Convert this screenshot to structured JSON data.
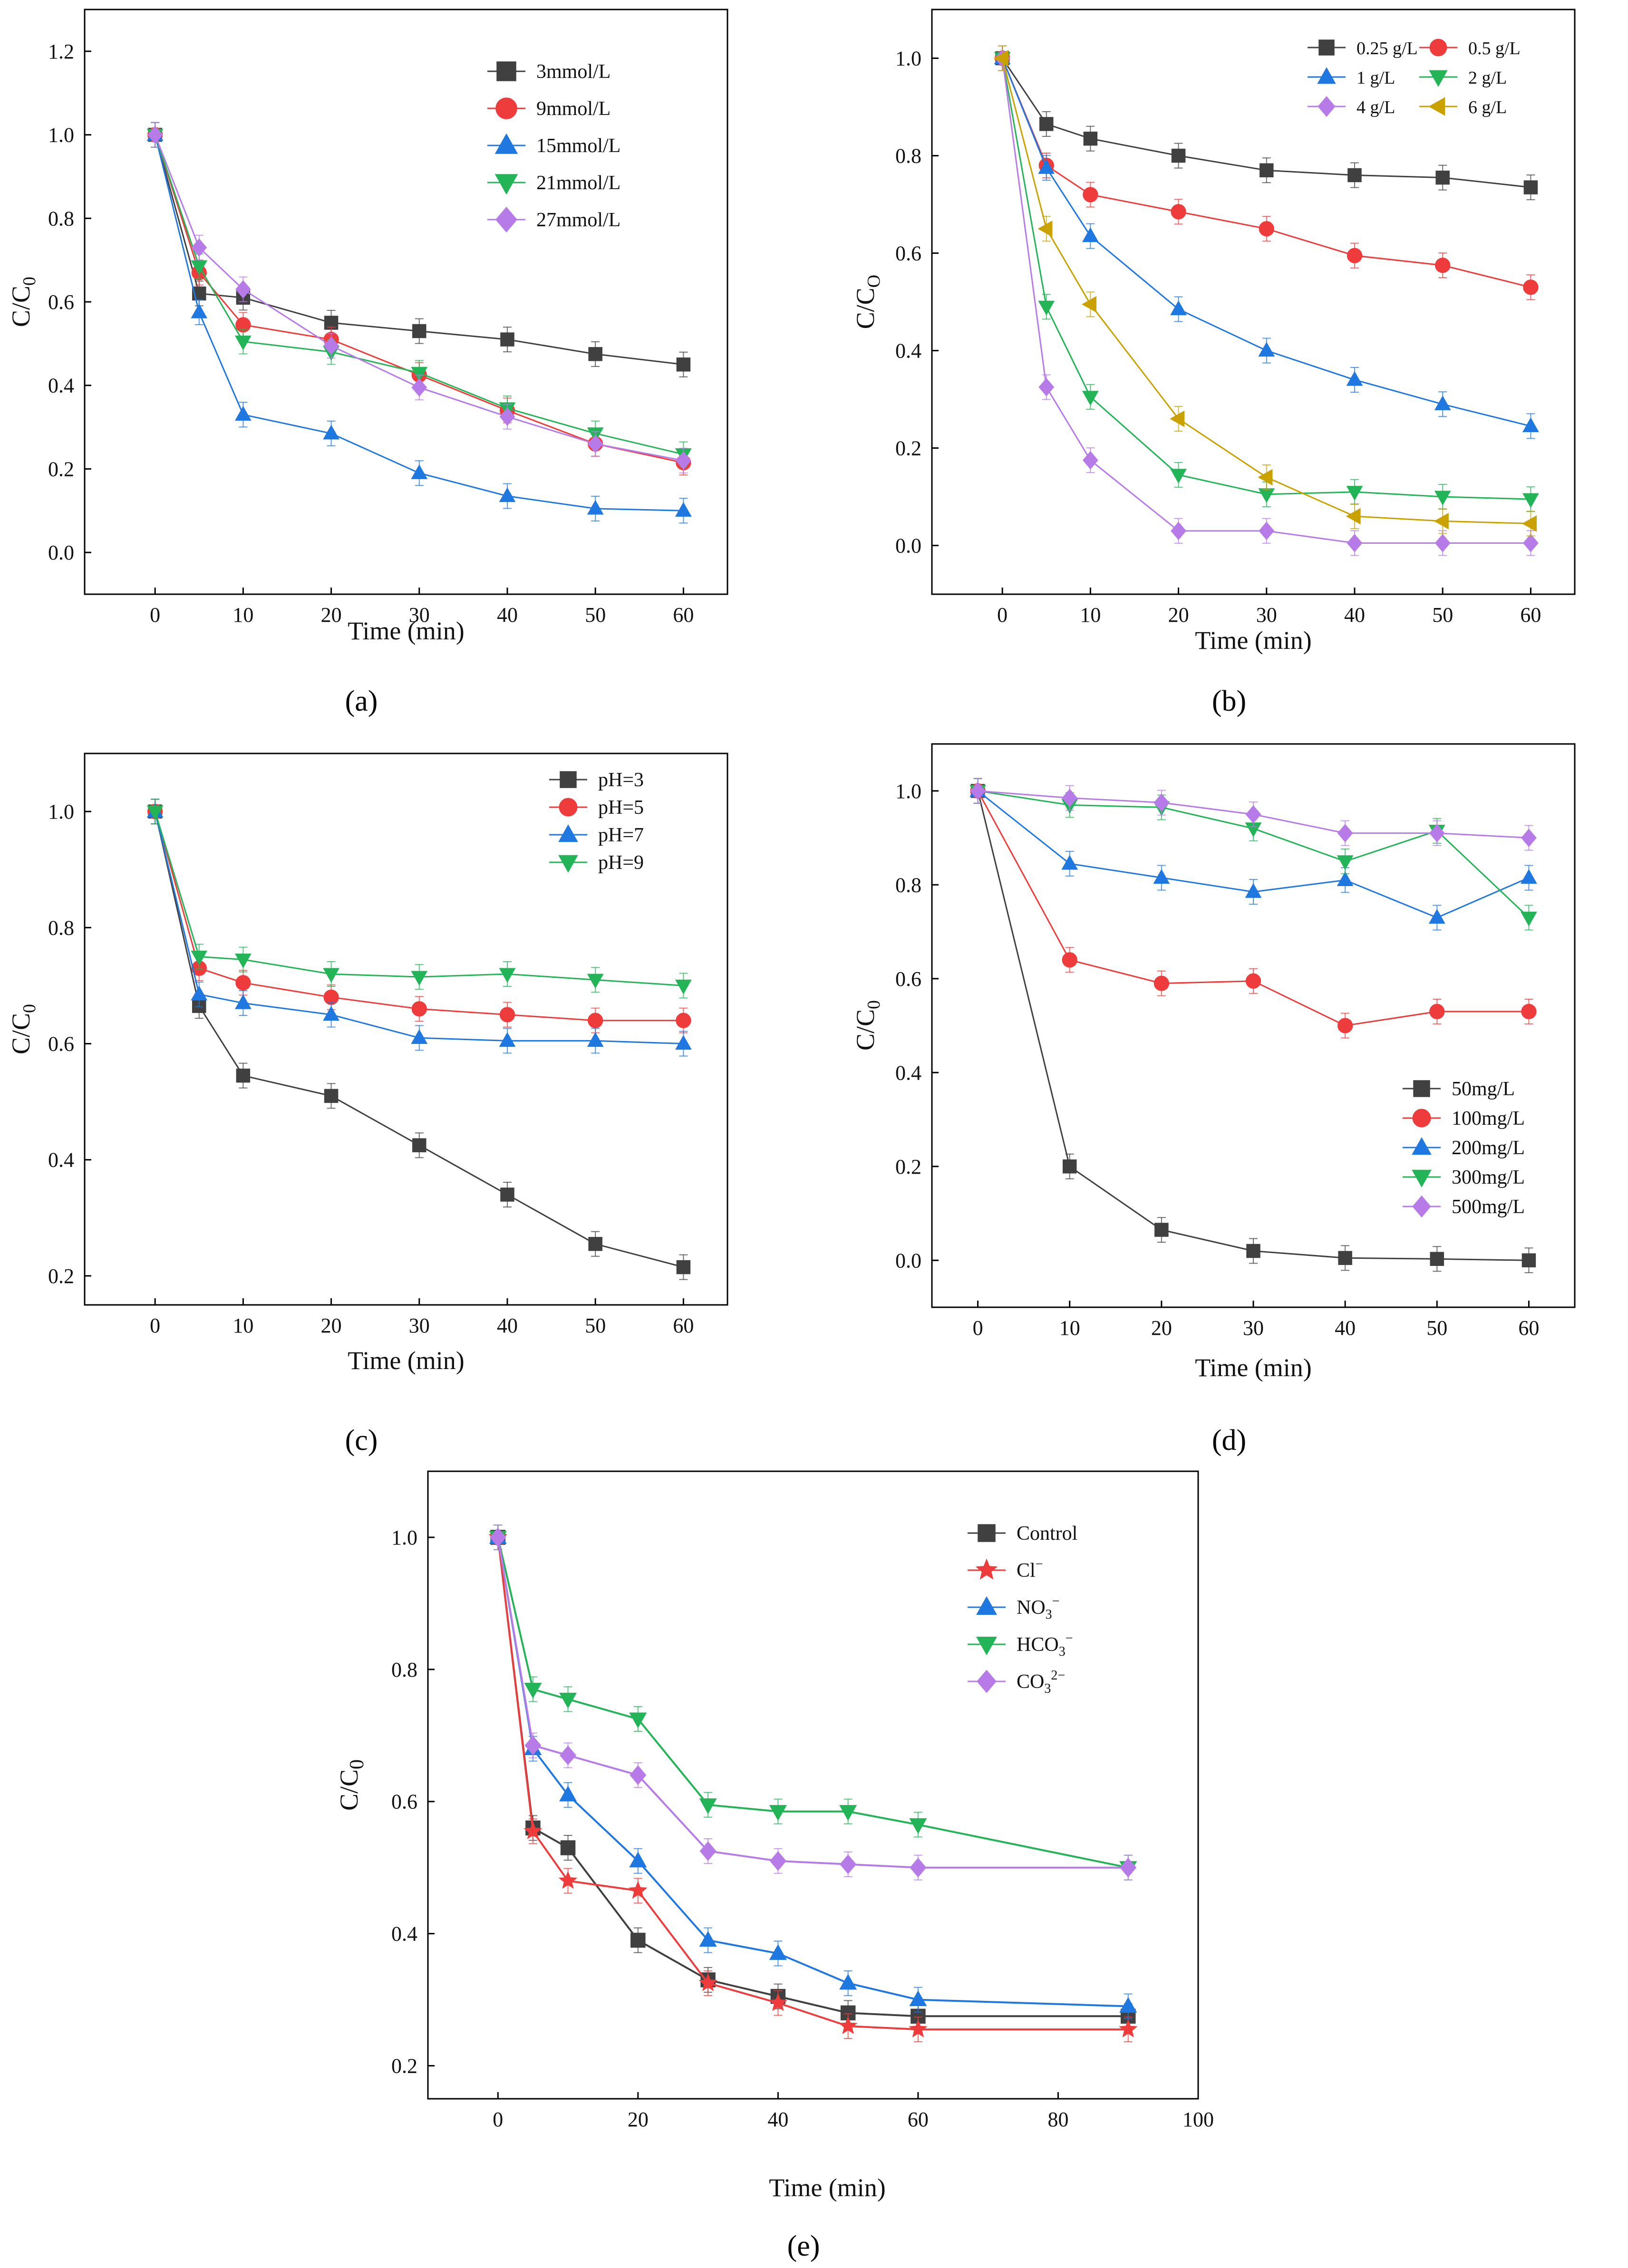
{
  "chart_data": [
    {
      "type": "line",
      "panel": "a",
      "caption": "(a)",
      "xlabel": "Time (min)",
      "ylabel": "C/C",
      "ylabel_sub": "0",
      "xlim": [
        -8,
        65
      ],
      "ylim": [
        -0.1,
        1.3
      ],
      "xticks": [
        0,
        10,
        20,
        30,
        40,
        50,
        60
      ],
      "yticks": [
        0.0,
        0.2,
        0.4,
        0.6,
        0.8,
        1.0,
        1.2
      ],
      "legend_position": "top-right",
      "x": [
        0,
        5,
        10,
        20,
        30,
        40,
        50,
        60
      ],
      "series": [
        {
          "name": "3mmol/L",
          "color": "#404040",
          "marker": "square",
          "values": [
            1.0,
            0.62,
            0.61,
            0.55,
            0.53,
            0.51,
            0.475,
            0.45
          ]
        },
        {
          "name": "9mmol/L",
          "color": "#ee3b3b",
          "marker": "circle",
          "values": [
            1.0,
            0.67,
            0.545,
            0.51,
            0.425,
            0.34,
            0.26,
            0.215
          ]
        },
        {
          "name": "15mmol/L",
          "color": "#1f77e0",
          "marker": "triangle-up",
          "values": [
            1.0,
            0.575,
            0.33,
            0.285,
            0.19,
            0.135,
            0.105,
            0.1
          ]
        },
        {
          "name": "21mmol/L",
          "color": "#22b457",
          "marker": "triangle-down",
          "values": [
            1.0,
            0.685,
            0.505,
            0.48,
            0.43,
            0.345,
            0.285,
            0.235
          ]
        },
        {
          "name": "27mmol/L",
          "color": "#b77be8",
          "marker": "diamond",
          "values": [
            1.0,
            0.73,
            0.63,
            0.495,
            0.395,
            0.325,
            0.26,
            0.22
          ]
        }
      ]
    },
    {
      "type": "line",
      "panel": "b",
      "caption": "(b)",
      "xlabel": "Time (min)",
      "ylabel": "C/C",
      "ylabel_sub": "O",
      "xlim": [
        -8,
        65
      ],
      "ylim": [
        -0.1,
        1.1
      ],
      "xticks": [
        0,
        10,
        20,
        30,
        40,
        50,
        60
      ],
      "yticks": [
        0.0,
        0.2,
        0.4,
        0.6,
        0.8,
        1.0
      ],
      "legend_position": "top-right",
      "x": [
        0,
        5,
        10,
        20,
        30,
        40,
        50,
        60
      ],
      "series": [
        {
          "name": "0.25 g/L",
          "color": "#404040",
          "marker": "square",
          "values": [
            1.0,
            0.865,
            0.835,
            0.8,
            0.77,
            0.76,
            0.755,
            0.735
          ]
        },
        {
          "name": "0.5 g/L",
          "color": "#ee3b3b",
          "marker": "circle",
          "values": [
            1.0,
            0.78,
            0.72,
            0.685,
            0.65,
            0.595,
            0.575,
            0.53
          ]
        },
        {
          "name": "1 g/L",
          "color": "#1f77e0",
          "marker": "triangle-up",
          "values": [
            1.0,
            0.775,
            0.635,
            0.485,
            0.4,
            0.34,
            0.29,
            0.245
          ]
        },
        {
          "name": "2 g/L",
          "color": "#22b457",
          "marker": "triangle-down",
          "values": [
            1.0,
            0.49,
            0.305,
            0.145,
            0.105,
            0.11,
            0.1,
            0.095
          ]
        },
        {
          "name": "4 g/L",
          "color": "#b77be8",
          "marker": "diamond",
          "values": [
            1.0,
            0.325,
            0.175,
            0.03,
            0.03,
            0.005,
            0.005,
            0.005
          ]
        },
        {
          "name": "6 g/L",
          "color": "#c9a200",
          "marker": "triangle-left",
          "values": [
            1.0,
            0.65,
            0.495,
            0.26,
            0.14,
            0.06,
            0.05,
            0.045
          ]
        }
      ]
    },
    {
      "type": "line",
      "panel": "c",
      "caption": "(c)",
      "xlabel": "Time (min)",
      "ylabel": "C/C",
      "ylabel_sub": "0",
      "xlim": [
        -8,
        65
      ],
      "ylim": [
        0.15,
        1.1
      ],
      "xticks": [
        0,
        10,
        20,
        30,
        40,
        50,
        60
      ],
      "yticks": [
        0.2,
        0.4,
        0.6,
        0.8,
        1.0
      ],
      "legend_position": "top-right",
      "x": [
        0,
        5,
        10,
        20,
        30,
        40,
        50,
        60
      ],
      "series": [
        {
          "name": "pH=3",
          "color": "#404040",
          "marker": "square",
          "values": [
            1.0,
            0.665,
            0.545,
            0.51,
            0.425,
            0.34,
            0.255,
            0.215
          ]
        },
        {
          "name": "pH=5",
          "color": "#ee3b3b",
          "marker": "circle",
          "values": [
            1.0,
            0.73,
            0.705,
            0.68,
            0.66,
            0.65,
            0.64,
            0.64
          ]
        },
        {
          "name": "pH=7",
          "color": "#1f77e0",
          "marker": "triangle-up",
          "values": [
            1.0,
            0.685,
            0.67,
            0.65,
            0.61,
            0.605,
            0.605,
            0.6
          ]
        },
        {
          "name": "pH=9",
          "color": "#22b457",
          "marker": "triangle-down",
          "values": [
            1.0,
            0.75,
            0.745,
            0.72,
            0.715,
            0.72,
            0.71,
            0.7
          ]
        }
      ]
    },
    {
      "type": "line",
      "panel": "d",
      "caption": "(d)",
      "xlabel": "Time (min)",
      "ylabel": "C/C",
      "ylabel_sub": "0",
      "xlim": [
        -5,
        65
      ],
      "ylim": [
        -0.1,
        1.1
      ],
      "xticks": [
        0,
        10,
        20,
        30,
        40,
        50,
        60
      ],
      "yticks": [
        0.0,
        0.2,
        0.4,
        0.6,
        0.8,
        1.0
      ],
      "legend_position": "bottom-right",
      "x": [
        0,
        10,
        20,
        30,
        40,
        50,
        60
      ],
      "series": [
        {
          "name": "50mg/L",
          "color": "#404040",
          "marker": "square",
          "values": [
            1.0,
            0.2,
            0.065,
            0.02,
            0.005,
            0.003,
            0.0
          ]
        },
        {
          "name": "100mg/L",
          "color": "#ee3b3b",
          "marker": "circle",
          "values": [
            1.0,
            0.64,
            0.59,
            0.595,
            0.5,
            0.53,
            0.53
          ]
        },
        {
          "name": "200mg/L",
          "color": "#1f77e0",
          "marker": "triangle-up",
          "values": [
            1.0,
            0.845,
            0.815,
            0.785,
            0.81,
            0.73,
            0.815
          ]
        },
        {
          "name": "300mg/L",
          "color": "#22b457",
          "marker": "triangle-down",
          "values": [
            1.0,
            0.97,
            0.965,
            0.92,
            0.85,
            0.915,
            0.73
          ]
        },
        {
          "name": "500mg/L",
          "color": "#b77be8",
          "marker": "diamond",
          "values": [
            1.0,
            0.985,
            0.975,
            0.95,
            0.91,
            0.91,
            0.9
          ]
        }
      ]
    },
    {
      "type": "line",
      "panel": "e",
      "caption": "(e)",
      "xlabel": "Time (min)",
      "ylabel": "C/C",
      "ylabel_sub": "0",
      "xlim": [
        -10,
        100
      ],
      "ylim": [
        0.15,
        1.1
      ],
      "xticks": [
        0,
        20,
        40,
        60,
        80,
        100
      ],
      "yticks": [
        0.2,
        0.4,
        0.6,
        0.8,
        1.0
      ],
      "legend_position": "top-right",
      "x": [
        0,
        5,
        10,
        20,
        30,
        40,
        50,
        60,
        90
      ],
      "series": [
        {
          "name": "Control",
          "color": "#404040",
          "marker": "square",
          "values": [
            1.0,
            0.56,
            0.53,
            0.39,
            0.33,
            0.305,
            0.28,
            0.275,
            0.275
          ]
        },
        {
          "name": "Cl",
          "sup": "−",
          "color": "#ee3b3b",
          "marker": "star",
          "values": [
            1.0,
            0.555,
            0.48,
            0.465,
            0.325,
            0.295,
            0.26,
            0.255,
            0.255
          ]
        },
        {
          "name": "NO",
          "sub": "3",
          "sup": "−",
          "color": "#1f77e0",
          "marker": "triangle-up",
          "values": [
            1.0,
            0.68,
            0.61,
            0.51,
            0.39,
            0.37,
            0.325,
            0.3,
            0.29
          ]
        },
        {
          "name": "HCO",
          "sub": "3",
          "sup": "−",
          "color": "#22b457",
          "marker": "triangle-down",
          "values": [
            1.0,
            0.77,
            0.755,
            0.725,
            0.595,
            0.585,
            0.585,
            0.565,
            0.5
          ]
        },
        {
          "name": "CO",
          "sub": "3",
          "sup": "2−",
          "color": "#b77be8",
          "marker": "diamond",
          "values": [
            1.0,
            0.685,
            0.67,
            0.64,
            0.525,
            0.51,
            0.505,
            0.5,
            0.5
          ]
        }
      ]
    }
  ]
}
